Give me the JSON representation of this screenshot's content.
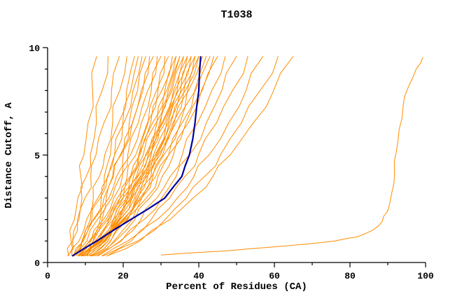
{
  "chart_data": {
    "type": "line",
    "title": "T1038",
    "xlabel": "Percent of Residues (CA)",
    "ylabel": "Distance Cutoff, A",
    "xlim": [
      0,
      100
    ],
    "ylim": [
      0,
      10
    ],
    "x_ticks": [
      0,
      20,
      40,
      60,
      80,
      100
    ],
    "x_minor_step": 10,
    "y_ticks": [
      0,
      5,
      10
    ],
    "y_minor_step": 1,
    "grid": false,
    "legend": "none",
    "colors": {
      "model": "#ff8c00",
      "reference": "#0000a0"
    },
    "y_levels": [
      0.3,
      1,
      2,
      3,
      4,
      5,
      6.5,
      8,
      9.6
    ],
    "model_series_x": [
      [
        5.4,
        6.2,
        7.1,
        8.0,
        8.8,
        9.6,
        10.7,
        11.9,
        13
      ],
      [
        5.6,
        6.6,
        7.9,
        9.1,
        10.2,
        11.3,
        12.9,
        14.4,
        16
      ],
      [
        5.3,
        6.6,
        8.3,
        9.9,
        11.4,
        12.8,
        14.9,
        16.9,
        19
      ],
      [
        6.4,
        8.3,
        10.3,
        12.1,
        13.7,
        15.1,
        17.2,
        19.1,
        21
      ],
      [
        7,
        9.1,
        11.3,
        13.3,
        15,
        16.6,
        18.8,
        20.9,
        23
      ],
      [
        6.9,
        9.5,
        12.1,
        14.2,
        16,
        17.7,
        19.9,
        22,
        24
      ],
      [
        6.8,
        9.1,
        11.7,
        13.9,
        15.8,
        17.7,
        20.2,
        22.6,
        25
      ],
      [
        7.6,
        10.4,
        13.2,
        15.5,
        17.4,
        19.2,
        21.6,
        23.8,
        26
      ],
      [
        8.2,
        11,
        13.9,
        16.2,
        18.2,
        20,
        22.5,
        24.8,
        27
      ],
      [
        6.6,
        9.3,
        12.3,
        14.9,
        17.2,
        19.4,
        22.4,
        25.2,
        28
      ],
      [
        8,
        11.2,
        14.4,
        17,
        19.2,
        21.2,
        24,
        26.5,
        29
      ],
      [
        8.1,
        11.5,
        14.8,
        17.5,
        19.8,
        21.9,
        24.8,
        27.4,
        30
      ],
      [
        10.4,
        14.1,
        17.4,
        20,
        22.1,
        24.1,
        26.6,
        28.8,
        31
      ],
      [
        8.4,
        12,
        15.5,
        18.4,
        21,
        23.3,
        26.4,
        29.2,
        32
      ],
      [
        8.9,
        12.6,
        16.2,
        19.2,
        21.8,
        24.1,
        27.3,
        30.2,
        33
      ],
      [
        8.2,
        12.1,
        16,
        19.2,
        21.9,
        24.4,
        27.8,
        31,
        34
      ],
      [
        10.1,
        14.4,
        18.2,
        21.2,
        23.7,
        25.9,
        28.9,
        31.5,
        34
      ],
      [
        8.8,
        12.7,
        16.7,
        19.9,
        22.7,
        25.3,
        28.7,
        31.9,
        35
      ],
      [
        11.1,
        15.4,
        19.2,
        22.2,
        24.7,
        26.9,
        29.9,
        32.5,
        35
      ],
      [
        10.5,
        15,
        19.1,
        22.3,
        25,
        27.4,
        30.5,
        33.3,
        36
      ],
      [
        9.3,
        13.4,
        17.4,
        20.7,
        23.5,
        26.1,
        29.6,
        32.9,
        36
      ],
      [
        9,
        13.3,
        17.5,
        20.9,
        23.9,
        26.6,
        30.3,
        33.7,
        37
      ],
      [
        11.5,
        16,
        20.1,
        23.3,
        26,
        28.4,
        31.5,
        34.3,
        37
      ],
      [
        9.1,
        13.5,
        17.9,
        21.4,
        24.5,
        27.3,
        31.1,
        34.6,
        38
      ],
      [
        11.3,
        16,
        20.3,
        23.7,
        26.5,
        29,
        32.2,
        35.2,
        38
      ],
      [
        9.3,
        13.8,
        18.3,
        21.9,
        25.1,
        28,
        31.9,
        35.5,
        39
      ],
      [
        11.8,
        16.7,
        21,
        24.4,
        27.3,
        29.8,
        33.2,
        36.1,
        39
      ],
      [
        9.4,
        14,
        18.7,
        22.4,
        25.7,
        28.7,
        32.7,
        36.4,
        40
      ],
      [
        11.6,
        16.6,
        21.2,
        24.8,
        27.8,
        30.4,
        33.9,
        37,
        40
      ],
      [
        9.5,
        14.3,
        19,
        23,
        26.3,
        29.3,
        33.5,
        37.3,
        41
      ],
      [
        12.4,
        17.6,
        22.4,
        26.1,
        29.2,
        32,
        35.6,
        38.9,
        42
      ],
      [
        9.8,
        14.8,
        19.8,
        23.9,
        27.5,
        30.7,
        35.1,
        39.1,
        43
      ],
      [
        12.3,
        17.9,
        23.1,
        27,
        30.3,
        33.3,
        37.2,
        40.7,
        44
      ],
      [
        10,
        15.3,
        20.6,
        24.9,
        28.6,
        32,
        36.6,
        40.9,
        45
      ],
      [
        13.3,
        19.2,
        24.7,
        28.9,
        32.4,
        35.6,
        39.7,
        43.4,
        47
      ],
      [
        13,
        19.5,
        25.5,
        30.2,
        34,
        37.5,
        42,
        46.1,
        50
      ],
      [
        14.3,
        21.2,
        27.4,
        32.3,
        36.3,
        39.9,
        44.7,
        48.9,
        53
      ],
      [
        14.6,
        22.1,
        29,
        34.3,
        38.7,
        42.7,
        47.9,
        52.5,
        57
      ],
      [
        15.7,
        23.8,
        31.1,
        36.7,
        41.5,
        45.7,
        51.3,
        56.2,
        61
      ],
      [
        15.6,
        24.4,
        32.4,
        38.5,
        43.7,
        48.3,
        54.4,
        59.8,
        65
      ]
    ],
    "reference_series_x": [
      6.5,
      13,
      22,
      31,
      35.5,
      37.5,
      39,
      40,
      40.5
    ],
    "outlier_series_xy": [
      [
        30,
        0.35
      ],
      [
        38,
        0.45
      ],
      [
        48,
        0.55
      ],
      [
        58,
        0.7
      ],
      [
        68,
        0.85
      ],
      [
        76,
        1.0
      ],
      [
        82,
        1.2
      ],
      [
        86,
        1.5
      ],
      [
        88.5,
        1.9
      ],
      [
        90,
        2.4
      ],
      [
        91,
        3.2
      ],
      [
        91.8,
        4.2
      ],
      [
        92.3,
        5.2
      ],
      [
        93,
        6.2
      ],
      [
        94,
        7.2
      ],
      [
        95.5,
        8.2
      ],
      [
        97.5,
        9.0
      ],
      [
        99.3,
        9.55
      ]
    ]
  }
}
